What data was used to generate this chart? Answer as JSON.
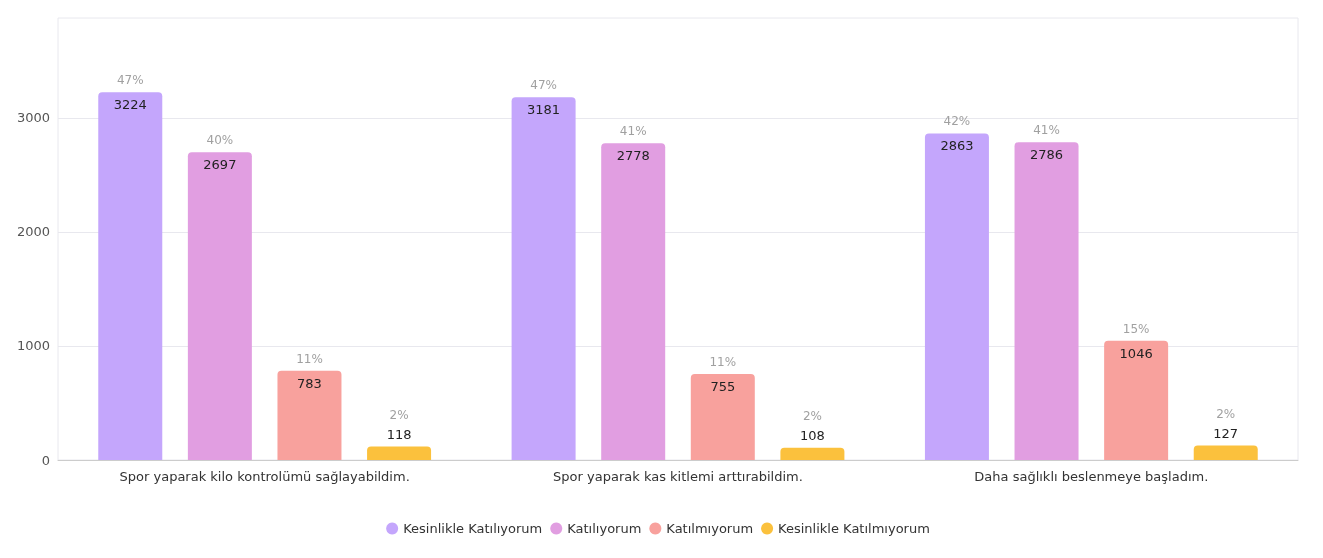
{
  "chart_data": {
    "type": "bar",
    "categories": [
      "Spor yaparak kilo kontrolümü sağlayabildim.",
      "Spor yaparak kas kitlemi arttırabildim.",
      "Daha sağlıklı beslenmeye başladım."
    ],
    "series": [
      {
        "name": "Kesinlikle Katılıyorum",
        "color": "#c4a6fc",
        "values": [
          3224,
          3181,
          2863
        ]
      },
      {
        "name": "Katılıyorum",
        "color": "#e19ee1",
        "values": [
          2697,
          2778,
          2786
        ]
      },
      {
        "name": "Katılmıyorum",
        "color": "#f8a19d",
        "values": [
          783,
          755,
          1046
        ]
      },
      {
        "name": "Kesinlikle Katılmıyorum",
        "color": "#fbc13d",
        "values": [
          118,
          108,
          127
        ]
      }
    ],
    "annotations": [
      "47%",
      "40%",
      "11%",
      "2%",
      "47%",
      "41%",
      "11%",
      "2%",
      "42%",
      "41%",
      "15%",
      "2%"
    ],
    "ylim": [
      0,
      3875
    ],
    "yticks": [
      0,
      1000,
      2000,
      3000
    ],
    "data_labels": true,
    "grid": "y",
    "legend": "bottom"
  }
}
